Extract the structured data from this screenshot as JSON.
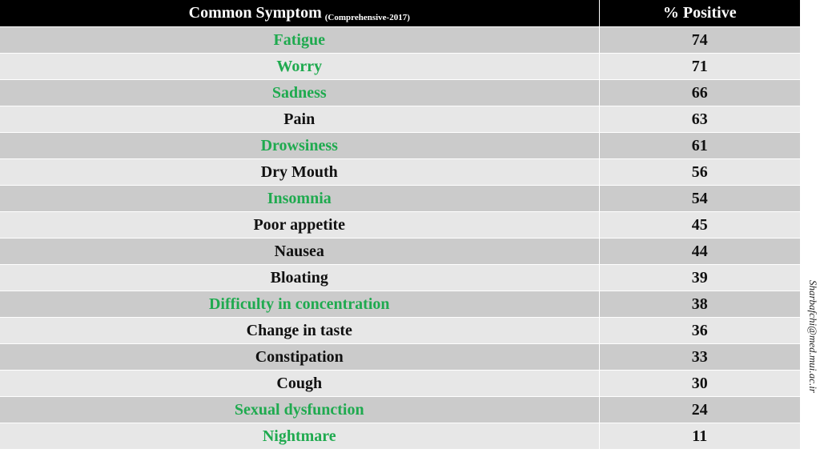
{
  "table": {
    "header": {
      "symptom_label": "Common Symptom",
      "symptom_sub": "(Comprehensive-2017)",
      "percent_label": "% Positive"
    },
    "highlight_color": "#1faa4f",
    "rows": [
      {
        "symptom": "Fatigue",
        "percent": "74",
        "highlight": true
      },
      {
        "symptom": "Worry",
        "percent": "71",
        "highlight": true
      },
      {
        "symptom": "Sadness",
        "percent": "66",
        "highlight": true
      },
      {
        "symptom": "Pain",
        "percent": "63",
        "highlight": false
      },
      {
        "symptom": "Drowsiness",
        "percent": "61",
        "highlight": true
      },
      {
        "symptom": "Dry Mouth",
        "percent": "56",
        "highlight": false
      },
      {
        "symptom": "Insomnia",
        "percent": "54",
        "highlight": true
      },
      {
        "symptom": "Poor appetite",
        "percent": "45",
        "highlight": false
      },
      {
        "symptom": "Nausea",
        "percent": "44",
        "highlight": false
      },
      {
        "symptom": "Bloating",
        "percent": "39",
        "highlight": false
      },
      {
        "symptom": "Difficulty in concentration",
        "percent": "38",
        "highlight": true
      },
      {
        "symptom": "Change in taste",
        "percent": "36",
        "highlight": false
      },
      {
        "symptom": "Constipation",
        "percent": "33",
        "highlight": false
      },
      {
        "symptom": "Cough",
        "percent": "30",
        "highlight": false
      },
      {
        "symptom": "Sexual dysfunction",
        "percent": "24",
        "highlight": true
      },
      {
        "symptom": "Nightmare",
        "percent": "11",
        "highlight": true
      }
    ]
  },
  "watermark": "Sharbafchi@med.mui.ac.ir"
}
